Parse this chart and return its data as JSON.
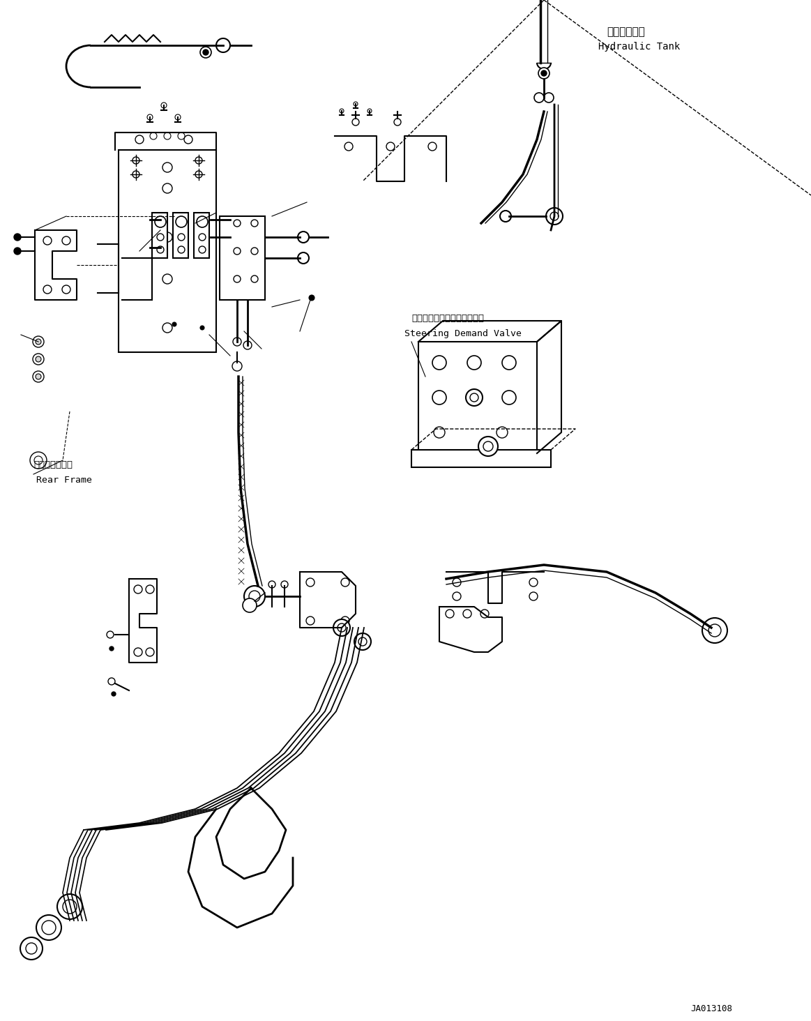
{
  "title": "",
  "background_color": "#ffffff",
  "text_color": "#000000",
  "line_color": "#000000",
  "fig_width": 11.63,
  "fig_height": 14.64,
  "label_hydraulic_tank_jp": "作動油タンク",
  "label_hydraulic_tank_en": "Hydraulic Tank",
  "label_steering_jp": "ステアリングデマンドバルブ",
  "label_steering_en": "Steering Demand Valve",
  "label_rear_frame_jp": "リヤーフレーム",
  "label_rear_frame_en": "Rear Frame",
  "label_part_number": "JA013108",
  "font_size_label": 9,
  "font_size_partnumber": 9,
  "font_family": "monospace"
}
